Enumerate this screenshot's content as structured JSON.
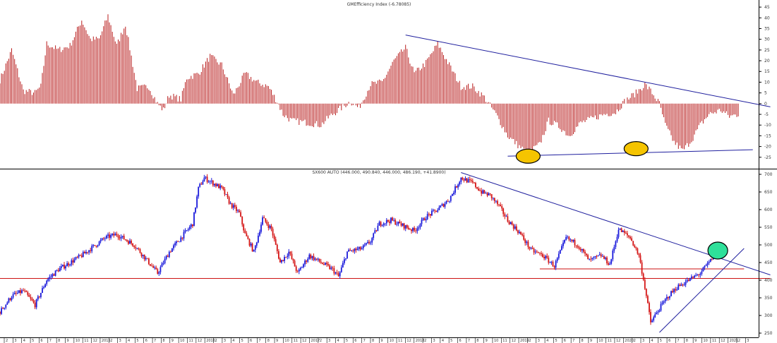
{
  "colors": {
    "bar": "#b81c1c",
    "candle_up": "#1a1adb",
    "candle_down": "#d41414",
    "trendline": "#1f1f9e",
    "support": "#cc1111",
    "marker_yellow": "#f5c400",
    "marker_green": "#2fe09a"
  },
  "chart_data": [
    {
      "type": "bar",
      "title": "GMEfficiency Index (-6.78085)",
      "ylim": [
        -30,
        47
      ],
      "yticks": [
        "45",
        "40",
        "35",
        "30",
        "25",
        "20",
        "15",
        "10",
        "5",
        "0",
        "-5",
        "-10",
        "-15",
        "-20",
        "-25"
      ],
      "ytick_values": [
        45,
        40,
        35,
        30,
        25,
        20,
        15,
        10,
        5,
        0,
        -5,
        -10,
        -15,
        -20,
        -25
      ],
      "xlim": [
        0,
        260
      ],
      "anchors": [
        [
          0,
          11
        ],
        [
          4,
          25
        ],
        [
          8,
          6
        ],
        [
          12,
          5
        ],
        [
          14,
          8
        ],
        [
          16,
          28
        ],
        [
          20,
          25
        ],
        [
          24,
          27
        ],
        [
          28,
          39
        ],
        [
          31,
          30
        ],
        [
          34,
          30
        ],
        [
          37,
          41
        ],
        [
          40,
          27
        ],
        [
          43,
          37
        ],
        [
          47,
          7
        ],
        [
          51,
          8
        ],
        [
          54,
          0
        ],
        [
          56,
          -3
        ],
        [
          58,
          4
        ],
        [
          62,
          2
        ],
        [
          64,
          12
        ],
        [
          68,
          14
        ],
        [
          72,
          22
        ],
        [
          76,
          18
        ],
        [
          80,
          4
        ],
        [
          84,
          14
        ],
        [
          88,
          10
        ],
        [
          92,
          8
        ],
        [
          95,
          1
        ],
        [
          97,
          -5
        ],
        [
          100,
          -8
        ],
        [
          106,
          -9
        ],
        [
          110,
          -10
        ],
        [
          113,
          -6
        ],
        [
          117,
          -2
        ],
        [
          120,
          1
        ],
        [
          123,
          -2
        ],
        [
          127,
          9
        ],
        [
          131,
          10
        ],
        [
          135,
          20
        ],
        [
          139,
          26
        ],
        [
          142,
          14
        ],
        [
          146,
          19
        ],
        [
          150,
          28
        ],
        [
          154,
          18
        ],
        [
          158,
          8
        ],
        [
          162,
          8
        ],
        [
          166,
          3
        ],
        [
          170,
          -5
        ],
        [
          174,
          -15
        ],
        [
          178,
          -20
        ],
        [
          181,
          -23
        ],
        [
          185,
          -19
        ],
        [
          188,
          -8
        ],
        [
          192,
          -11
        ],
        [
          195,
          -15
        ],
        [
          199,
          -9
        ],
        [
          203,
          -7
        ],
        [
          207,
          -5
        ],
        [
          211,
          -4
        ],
        [
          214,
          1
        ],
        [
          218,
          5
        ],
        [
          221,
          9
        ],
        [
          223,
          6
        ],
        [
          226,
          0
        ],
        [
          228,
          -10
        ],
        [
          231,
          -18
        ],
        [
          234,
          -22
        ],
        [
          237,
          -17
        ],
        [
          240,
          -10
        ],
        [
          243,
          -5
        ],
        [
          247,
          -3
        ],
        [
          250,
          -6
        ],
        [
          253,
          -5
        ]
      ],
      "markers": [
        {
          "x": 181,
          "y": -24.5
        },
        {
          "x": 218,
          "y": -21
        }
      ],
      "lines": [
        {
          "from": [
            139,
            32
          ],
          "to": [
            264,
            -1.5
          ]
        },
        {
          "from": [
            174,
            -24.5
          ],
          "to": [
            258,
            -21.5
          ]
        }
      ],
      "month_labels": [
        "2",
        "3",
        "4",
        "5",
        "6",
        "7",
        "8",
        "9",
        "10",
        "11",
        "12",
        "2015",
        "2",
        "3",
        "4",
        "5",
        "6",
        "7",
        "8",
        "9",
        "10",
        "11",
        "12",
        "2016",
        "2",
        "3",
        "4",
        "5",
        "6",
        "7",
        "8",
        "9",
        "10",
        "11",
        "12",
        "2017",
        "2",
        "3",
        "4",
        "5",
        "6",
        "7",
        "8",
        "9",
        "10",
        "11",
        "12",
        "2018",
        "2",
        "3",
        "4",
        "5",
        "6",
        "7",
        "8",
        "9",
        "10",
        "11",
        "12",
        "2019",
        "2",
        "3",
        "4",
        "5",
        "6",
        "7",
        "8",
        "9",
        "10",
        "11",
        "12",
        "2020",
        "2",
        "3",
        "4",
        "5",
        "6",
        "7",
        "8",
        "9",
        "10",
        "11",
        "12",
        "2021",
        "2",
        "3"
      ]
    },
    {
      "type": "line",
      "title": "SX600 AUTO (446.000, 490.840, 446.000, 486.190, +41.8900)",
      "ylim": [
        240,
        710
      ],
      "yticks": [
        "700",
        "650",
        "600",
        "550",
        "500",
        "450",
        "400",
        "350",
        "300",
        "250"
      ],
      "ytick_values": [
        700,
        650,
        600,
        550,
        500,
        450,
        400,
        350,
        300,
        250
      ],
      "xlim": [
        0,
        260
      ],
      "anchors": [
        [
          0,
          310
        ],
        [
          4,
          355
        ],
        [
          8,
          370
        ],
        [
          12,
          330
        ],
        [
          16,
          400
        ],
        [
          20,
          430
        ],
        [
          28,
          470
        ],
        [
          36,
          520
        ],
        [
          40,
          530
        ],
        [
          46,
          500
        ],
        [
          50,
          460
        ],
        [
          54,
          420
        ],
        [
          58,
          480
        ],
        [
          62,
          520
        ],
        [
          66,
          560
        ],
        [
          68,
          660
        ],
        [
          70,
          690
        ],
        [
          72,
          680
        ],
        [
          76,
          660
        ],
        [
          79,
          615
        ],
        [
          82,
          590
        ],
        [
          84,
          530
        ],
        [
          87,
          480
        ],
        [
          90,
          575
        ],
        [
          93,
          545
        ],
        [
          96,
          450
        ],
        [
          99,
          480
        ],
        [
          102,
          420
        ],
        [
          106,
          470
        ],
        [
          110,
          450
        ],
        [
          114,
          430
        ],
        [
          116,
          410
        ],
        [
          119,
          480
        ],
        [
          124,
          490
        ],
        [
          127,
          510
        ],
        [
          130,
          560
        ],
        [
          134,
          570
        ],
        [
          138,
          555
        ],
        [
          142,
          540
        ],
        [
          146,
          580
        ],
        [
          150,
          600
        ],
        [
          154,
          630
        ],
        [
          158,
          690
        ],
        [
          162,
          675
        ],
        [
          165,
          650
        ],
        [
          168,
          640
        ],
        [
          171,
          610
        ],
        [
          174,
          570
        ],
        [
          178,
          535
        ],
        [
          182,
          485
        ],
        [
          186,
          470
        ],
        [
          190,
          440
        ],
        [
          194,
          520
        ],
        [
          198,
          500
        ],
        [
          202,
          455
        ],
        [
          206,
          470
        ],
        [
          209,
          445
        ],
        [
          212,
          545
        ],
        [
          216,
          520
        ],
        [
          219,
          470
        ],
        [
          221,
          380
        ],
        [
          223,
          280
        ],
        [
          226,
          320
        ],
        [
          229,
          355
        ],
        [
          232,
          380
        ],
        [
          236,
          400
        ],
        [
          240,
          420
        ],
        [
          243,
          450
        ],
        [
          246,
          486
        ]
      ],
      "markers": [
        {
          "x": 246,
          "y": 484
        }
      ],
      "lines": [
        {
          "from": [
            158,
            705
          ],
          "to": [
            264,
            415
          ]
        },
        {
          "from": [
            226,
            252
          ],
          "to": [
            255,
            490
          ]
        },
        {
          "from": [
            0,
            405
          ],
          "to": [
            264,
            405
          ]
        },
        {
          "from": [
            185,
            432
          ],
          "to": [
            255,
            432
          ]
        }
      ]
    }
  ]
}
